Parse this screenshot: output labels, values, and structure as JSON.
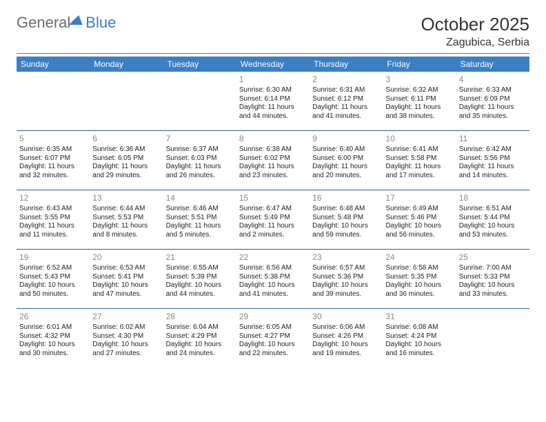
{
  "logo": {
    "part1": "General",
    "part2": "Blue"
  },
  "title": "October 2025",
  "location": "Zagubica, Serbia",
  "colors": {
    "header_bg": "#3b7fc4",
    "header_fg": "#ffffff",
    "divider": "#777777",
    "cell_border": "#2a5f96",
    "daynum": "#888888",
    "text": "#222222",
    "logo_gray": "#6a6a6a",
    "logo_blue": "#3b7fc4"
  },
  "daynames": [
    "Sunday",
    "Monday",
    "Tuesday",
    "Wednesday",
    "Thursday",
    "Friday",
    "Saturday"
  ],
  "weeks": [
    [
      null,
      null,
      null,
      {
        "n": "1",
        "sr": "Sunrise: 6:30 AM",
        "ss": "Sunset: 6:14 PM",
        "d1": "Daylight: 11 hours",
        "d2": "and 44 minutes."
      },
      {
        "n": "2",
        "sr": "Sunrise: 6:31 AM",
        "ss": "Sunset: 6:12 PM",
        "d1": "Daylight: 11 hours",
        "d2": "and 41 minutes."
      },
      {
        "n": "3",
        "sr": "Sunrise: 6:32 AM",
        "ss": "Sunset: 6:11 PM",
        "d1": "Daylight: 11 hours",
        "d2": "and 38 minutes."
      },
      {
        "n": "4",
        "sr": "Sunrise: 6:33 AM",
        "ss": "Sunset: 6:09 PM",
        "d1": "Daylight: 11 hours",
        "d2": "and 35 minutes."
      }
    ],
    [
      {
        "n": "5",
        "sr": "Sunrise: 6:35 AM",
        "ss": "Sunset: 6:07 PM",
        "d1": "Daylight: 11 hours",
        "d2": "and 32 minutes."
      },
      {
        "n": "6",
        "sr": "Sunrise: 6:36 AM",
        "ss": "Sunset: 6:05 PM",
        "d1": "Daylight: 11 hours",
        "d2": "and 29 minutes."
      },
      {
        "n": "7",
        "sr": "Sunrise: 6:37 AM",
        "ss": "Sunset: 6:03 PM",
        "d1": "Daylight: 11 hours",
        "d2": "and 26 minutes."
      },
      {
        "n": "8",
        "sr": "Sunrise: 6:38 AM",
        "ss": "Sunset: 6:02 PM",
        "d1": "Daylight: 11 hours",
        "d2": "and 23 minutes."
      },
      {
        "n": "9",
        "sr": "Sunrise: 6:40 AM",
        "ss": "Sunset: 6:00 PM",
        "d1": "Daylight: 11 hours",
        "d2": "and 20 minutes."
      },
      {
        "n": "10",
        "sr": "Sunrise: 6:41 AM",
        "ss": "Sunset: 5:58 PM",
        "d1": "Daylight: 11 hours",
        "d2": "and 17 minutes."
      },
      {
        "n": "11",
        "sr": "Sunrise: 6:42 AM",
        "ss": "Sunset: 5:56 PM",
        "d1": "Daylight: 11 hours",
        "d2": "and 14 minutes."
      }
    ],
    [
      {
        "n": "12",
        "sr": "Sunrise: 6:43 AM",
        "ss": "Sunset: 5:55 PM",
        "d1": "Daylight: 11 hours",
        "d2": "and 11 minutes."
      },
      {
        "n": "13",
        "sr": "Sunrise: 6:44 AM",
        "ss": "Sunset: 5:53 PM",
        "d1": "Daylight: 11 hours",
        "d2": "and 8 minutes."
      },
      {
        "n": "14",
        "sr": "Sunrise: 6:46 AM",
        "ss": "Sunset: 5:51 PM",
        "d1": "Daylight: 11 hours",
        "d2": "and 5 minutes."
      },
      {
        "n": "15",
        "sr": "Sunrise: 6:47 AM",
        "ss": "Sunset: 5:49 PM",
        "d1": "Daylight: 11 hours",
        "d2": "and 2 minutes."
      },
      {
        "n": "16",
        "sr": "Sunrise: 6:48 AM",
        "ss": "Sunset: 5:48 PM",
        "d1": "Daylight: 10 hours",
        "d2": "and 59 minutes."
      },
      {
        "n": "17",
        "sr": "Sunrise: 6:49 AM",
        "ss": "Sunset: 5:46 PM",
        "d1": "Daylight: 10 hours",
        "d2": "and 56 minutes."
      },
      {
        "n": "18",
        "sr": "Sunrise: 6:51 AM",
        "ss": "Sunset: 5:44 PM",
        "d1": "Daylight: 10 hours",
        "d2": "and 53 minutes."
      }
    ],
    [
      {
        "n": "19",
        "sr": "Sunrise: 6:52 AM",
        "ss": "Sunset: 5:43 PM",
        "d1": "Daylight: 10 hours",
        "d2": "and 50 minutes."
      },
      {
        "n": "20",
        "sr": "Sunrise: 6:53 AM",
        "ss": "Sunset: 5:41 PM",
        "d1": "Daylight: 10 hours",
        "d2": "and 47 minutes."
      },
      {
        "n": "21",
        "sr": "Sunrise: 6:55 AM",
        "ss": "Sunset: 5:39 PM",
        "d1": "Daylight: 10 hours",
        "d2": "and 44 minutes."
      },
      {
        "n": "22",
        "sr": "Sunrise: 6:56 AM",
        "ss": "Sunset: 5:38 PM",
        "d1": "Daylight: 10 hours",
        "d2": "and 41 minutes."
      },
      {
        "n": "23",
        "sr": "Sunrise: 6:57 AM",
        "ss": "Sunset: 5:36 PM",
        "d1": "Daylight: 10 hours",
        "d2": "and 39 minutes."
      },
      {
        "n": "24",
        "sr": "Sunrise: 6:58 AM",
        "ss": "Sunset: 5:35 PM",
        "d1": "Daylight: 10 hours",
        "d2": "and 36 minutes."
      },
      {
        "n": "25",
        "sr": "Sunrise: 7:00 AM",
        "ss": "Sunset: 5:33 PM",
        "d1": "Daylight: 10 hours",
        "d2": "and 33 minutes."
      }
    ],
    [
      {
        "n": "26",
        "sr": "Sunrise: 6:01 AM",
        "ss": "Sunset: 4:32 PM",
        "d1": "Daylight: 10 hours",
        "d2": "and 30 minutes."
      },
      {
        "n": "27",
        "sr": "Sunrise: 6:02 AM",
        "ss": "Sunset: 4:30 PM",
        "d1": "Daylight: 10 hours",
        "d2": "and 27 minutes."
      },
      {
        "n": "28",
        "sr": "Sunrise: 6:04 AM",
        "ss": "Sunset: 4:29 PM",
        "d1": "Daylight: 10 hours",
        "d2": "and 24 minutes."
      },
      {
        "n": "29",
        "sr": "Sunrise: 6:05 AM",
        "ss": "Sunset: 4:27 PM",
        "d1": "Daylight: 10 hours",
        "d2": "and 22 minutes."
      },
      {
        "n": "30",
        "sr": "Sunrise: 6:06 AM",
        "ss": "Sunset: 4:26 PM",
        "d1": "Daylight: 10 hours",
        "d2": "and 19 minutes."
      },
      {
        "n": "31",
        "sr": "Sunrise: 6:08 AM",
        "ss": "Sunset: 4:24 PM",
        "d1": "Daylight: 10 hours",
        "d2": "and 16 minutes."
      },
      null
    ]
  ]
}
